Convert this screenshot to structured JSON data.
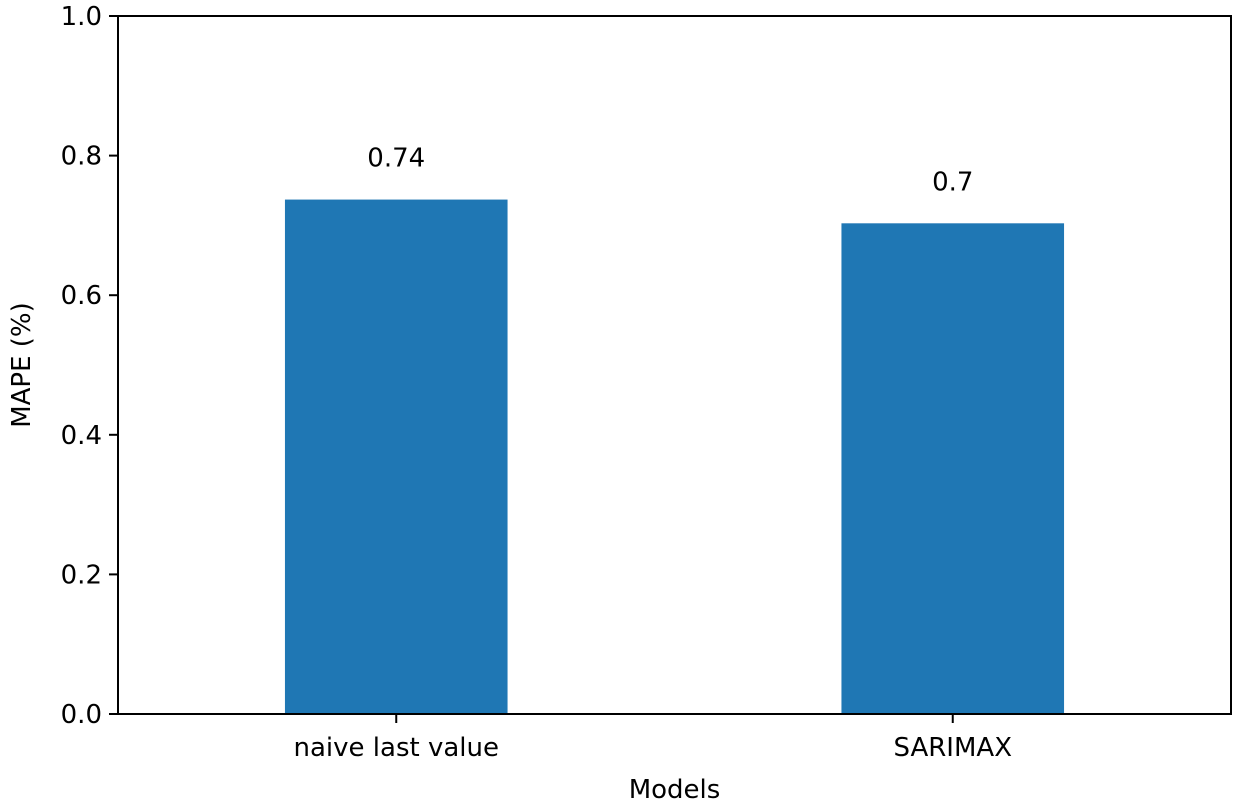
{
  "chart_data": {
    "type": "bar",
    "categories": [
      "naive last value",
      "SARIMAX"
    ],
    "values": [
      0.737,
      0.703
    ],
    "data_labels": [
      "0.74",
      "0.7"
    ],
    "bar_color": "#1f77b4",
    "xlabel": "Models",
    "ylabel": "MAPE (%)",
    "ylim": [
      0,
      1.0
    ],
    "yticks": [
      0.0,
      0.2,
      0.4,
      0.6,
      0.8,
      1.0
    ],
    "ytick_labels": [
      "0.0",
      "0.2",
      "0.4",
      "0.6",
      "0.8",
      "1.0"
    ],
    "grid": false,
    "legend": "none"
  }
}
